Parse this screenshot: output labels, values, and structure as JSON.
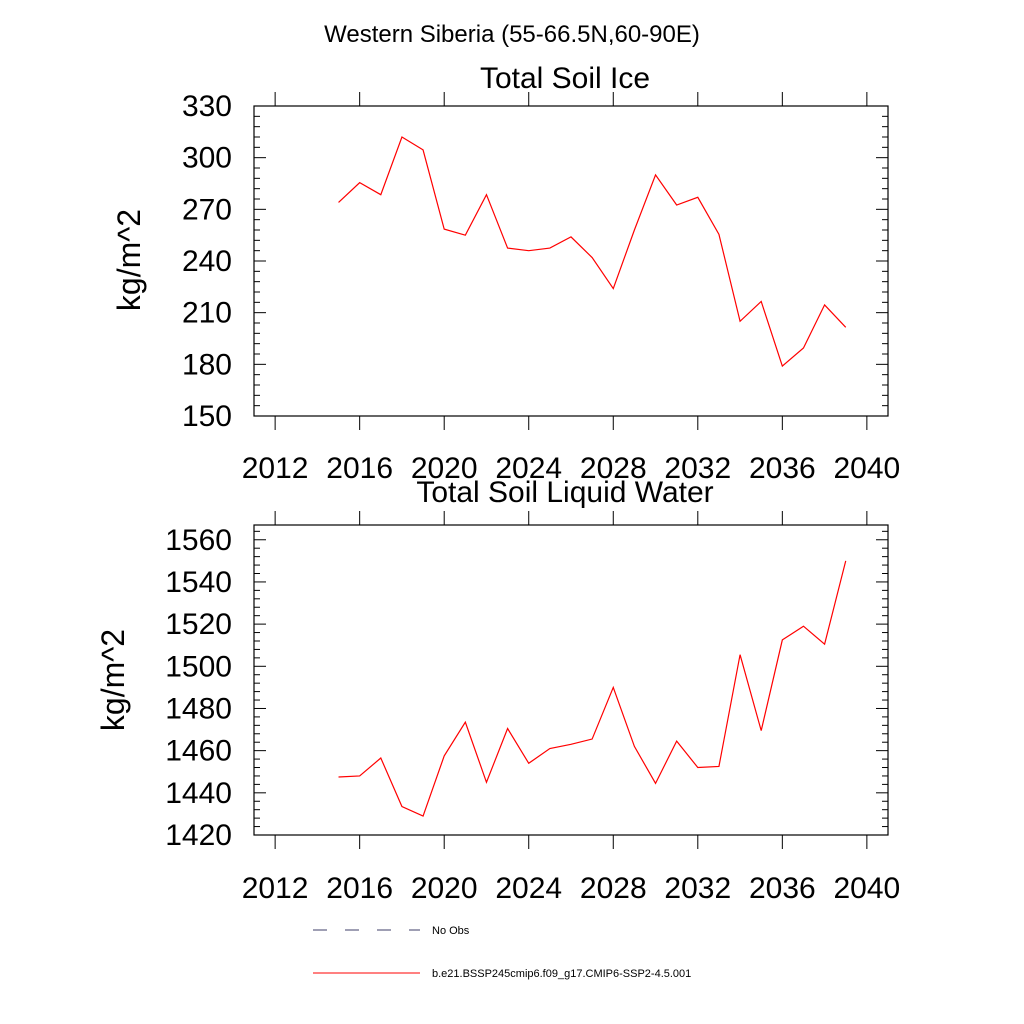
{
  "figure_title": "Western Siberia (55-66.5N,60-90E)",
  "chart_data": [
    {
      "type": "line",
      "title": "Total Soil Ice",
      "xlabel": "",
      "ylabel": "kg/m^2",
      "xlim": [
        2011,
        2041
      ],
      "ylim": [
        150,
        330
      ],
      "x_ticks": [
        2012,
        2016,
        2020,
        2024,
        2028,
        2032,
        2036,
        2040
      ],
      "y_ticks": [
        150,
        180,
        210,
        240,
        270,
        300,
        330
      ],
      "x_tick_labels": [
        "2012",
        "2016",
        "2020",
        "2024",
        "2028",
        "2032",
        "2036",
        "2040"
      ],
      "y_tick_labels": [
        "150",
        "180",
        "210",
        "240",
        "270",
        "300",
        "330"
      ],
      "grid": false,
      "series": [
        {
          "name": "b.e21.BSSP245cmip6.f09_g17.CMIP6-SSP2-4.5.001",
          "color": "#ff0000",
          "x": [
            2015,
            2016,
            2017,
            2018,
            2019,
            2020,
            2021,
            2022,
            2023,
            2024,
            2025,
            2026,
            2027,
            2028,
            2029,
            2030,
            2031,
            2032,
            2033,
            2034,
            2035,
            2036,
            2037,
            2038,
            2039
          ],
          "values": [
            274,
            285.5,
            278.5,
            312,
            304.5,
            258.5,
            255,
            278.5,
            247.5,
            246,
            247.5,
            254,
            242,
            224,
            258,
            290,
            272.5,
            277,
            255.5,
            205,
            216.5,
            179,
            189.5,
            214.5,
            201.5
          ]
        }
      ]
    },
    {
      "type": "line",
      "title": "Total Soil Liquid Water",
      "xlabel": "",
      "ylabel": "kg/m^2",
      "xlim": [
        2011,
        2041
      ],
      "ylim": [
        1420,
        1567
      ],
      "x_ticks": [
        2012,
        2016,
        2020,
        2024,
        2028,
        2032,
        2036,
        2040
      ],
      "y_ticks": [
        1420,
        1440,
        1460,
        1480,
        1500,
        1520,
        1540,
        1560
      ],
      "x_tick_labels": [
        "2012",
        "2016",
        "2020",
        "2024",
        "2028",
        "2032",
        "2036",
        "2040"
      ],
      "y_tick_labels": [
        "1420",
        "1440",
        "1460",
        "1480",
        "1500",
        "1520",
        "1540",
        "1560"
      ],
      "grid": false,
      "series": [
        {
          "name": "b.e21.BSSP245cmip6.f09_g17.CMIP6-SSP2-4.5.001",
          "color": "#ff0000",
          "x": [
            2015,
            2016,
            2017,
            2018,
            2019,
            2020,
            2021,
            2022,
            2023,
            2024,
            2025,
            2026,
            2027,
            2028,
            2029,
            2030,
            2031,
            2032,
            2033,
            2034,
            2035,
            2036,
            2037,
            2038,
            2039
          ],
          "values": [
            1447.5,
            1448,
            1456.5,
            1433.5,
            1429,
            1457.5,
            1473.5,
            1445,
            1470.5,
            1454,
            1461,
            1463,
            1465.5,
            1490,
            1462,
            1444.5,
            1464.5,
            1452,
            1452.5,
            1505.5,
            1469.5,
            1512.5,
            1519,
            1510.5,
            1550
          ]
        }
      ]
    }
  ],
  "legend": {
    "placement": "bottom",
    "items": [
      {
        "label": "No Obs",
        "style": "dashed",
        "color": "#3f3f6a"
      },
      {
        "label": "b.e21.BSSP245cmip6.f09_g17.CMIP6-SSP2-4.5.001",
        "style": "solid",
        "color": "#ff0000"
      }
    ]
  }
}
